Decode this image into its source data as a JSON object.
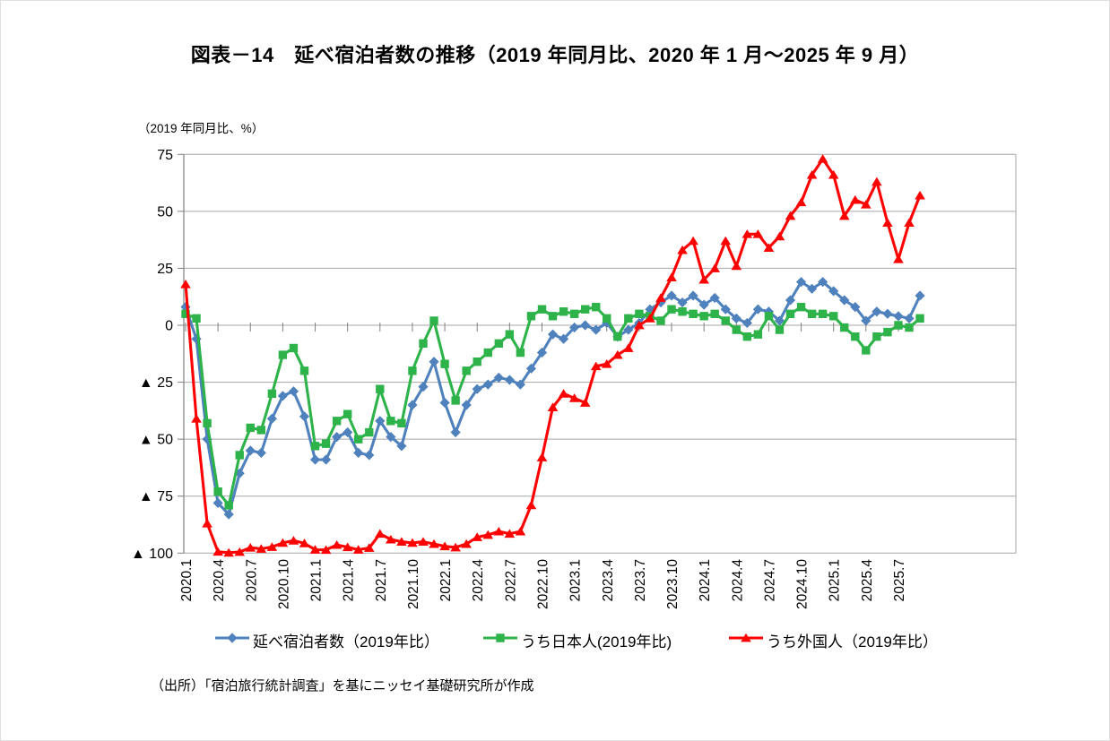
{
  "title": "図表－14　延べ宿泊者数の推移（2019 年同月比、2020 年 1 月～2025 年 9 月）",
  "y_axis_unit": "（2019 年同月比、%）",
  "source_note": "（出所）「宿泊旅行統計調査」を基にニッセイ基礎研究所が作成",
  "colors": {
    "grid": "#a6a6a6",
    "axis": "#808080",
    "series_total": "#4f81bd",
    "series_japanese": "#2db34a",
    "series_foreign": "#ff0000"
  },
  "chart_data": {
    "type": "line",
    "title": "延べ宿泊者数の推移（2019年同月比、2020年1月～2025年9月）",
    "ylabel": "（2019 年同月比、%）",
    "ylim": [
      -100,
      75
    ],
    "grid": true,
    "legend_position": "bottom",
    "y_ticks": [
      {
        "v": 75,
        "label": "75"
      },
      {
        "v": 50,
        "label": "50"
      },
      {
        "v": 25,
        "label": "25"
      },
      {
        "v": 0,
        "label": "0"
      },
      {
        "v": -25,
        "label": "▲ 25"
      },
      {
        "v": -50,
        "label": "▲ 50"
      },
      {
        "v": -75,
        "label": "▲ 75"
      },
      {
        "v": -100,
        "label": "▲ 100"
      }
    ],
    "x": [
      "2020.1",
      "2020.2",
      "2020.3",
      "2020.4",
      "2020.5",
      "2020.6",
      "2020.7",
      "2020.8",
      "2020.9",
      "2020.10",
      "2020.11",
      "2020.12",
      "2021.1",
      "2021.2",
      "2021.3",
      "2021.4",
      "2021.5",
      "2021.6",
      "2021.7",
      "2021.8",
      "2021.9",
      "2021.10",
      "2021.11",
      "2021.12",
      "2022.1",
      "2022.2",
      "2022.3",
      "2022.4",
      "2022.5",
      "2022.6",
      "2022.7",
      "2022.8",
      "2022.9",
      "2022.10",
      "2022.11",
      "2022.12",
      "2023.1",
      "2023.2",
      "2023.3",
      "2023.4",
      "2023.5",
      "2023.6",
      "2023.7",
      "2023.8",
      "2023.9",
      "2023.10",
      "2023.11",
      "2023.12",
      "2024.1",
      "2024.2",
      "2024.3",
      "2024.4",
      "2024.5",
      "2024.6",
      "2024.7",
      "2024.8",
      "2024.9",
      "2024.10",
      "2024.11",
      "2024.12",
      "2025.1",
      "2025.2",
      "2025.3",
      "2025.4",
      "2025.5",
      "2025.6",
      "2025.7",
      "2025.8",
      "2025.9"
    ],
    "x_tick_labels": [
      "2020.1",
      "2020.4",
      "2020.7",
      "2020.10",
      "2021.1",
      "2021.4",
      "2021.7",
      "2021.10",
      "2022.1",
      "2022.4",
      "2022.7",
      "2022.10",
      "2023.1",
      "2023.4",
      "2023.7",
      "2023.10",
      "2024.1",
      "2024.4",
      "2024.7",
      "2024.10",
      "2025.1",
      "2025.4",
      "2025.7"
    ],
    "series": [
      {
        "name": "延べ宿泊者数（2019年比）",
        "color": "#4f81bd",
        "marker": "diamond",
        "values": [
          8,
          -6,
          -50,
          -78,
          -83,
          -65,
          -55,
          -56,
          -41,
          -31,
          -29,
          -40,
          -59,
          -59,
          -49,
          -47,
          -56,
          -57,
          -42,
          -49,
          -53,
          -35,
          -27,
          -16,
          -34,
          -47,
          -35,
          -28,
          -26,
          -23,
          -24,
          -26,
          -19,
          -12,
          -4,
          -6,
          -1,
          0,
          -2,
          1,
          -5,
          -2,
          1,
          7,
          10,
          13,
          10,
          13,
          9,
          12,
          7,
          3,
          1,
          7,
          6,
          2,
          11,
          19,
          16,
          19,
          15,
          11,
          8,
          2,
          6,
          5,
          4,
          3,
          13
        ]
      },
      {
        "name": "うち日本人(2019年比)",
        "color": "#2db34a",
        "marker": "square",
        "values": [
          5,
          3,
          -43,
          -73,
          -79,
          -57,
          -45,
          -46,
          -30,
          -13,
          -10,
          -20,
          -53,
          -52,
          -42,
          -39,
          -50,
          -47,
          -28,
          -42,
          -43,
          -20,
          -8,
          2,
          -17,
          -33,
          -20,
          -16,
          -12,
          -8,
          -4,
          -12,
          4,
          7,
          4,
          6,
          5,
          7,
          8,
          3,
          -5,
          3,
          5,
          4,
          2,
          7,
          6,
          5,
          4,
          5,
          2,
          -2,
          -5,
          -4,
          4,
          -2,
          5,
          8,
          5,
          5,
          4,
          -1,
          -5,
          -11,
          -5,
          -3,
          0,
          -1,
          3
        ]
      },
      {
        "name": "うち外国人（2019年比）",
        "color": "#ff0000",
        "marker": "triangle",
        "values": [
          18,
          -41,
          -87,
          -99.4,
          -99.8,
          -99.5,
          -97.6,
          -98.1,
          -97.3,
          -95.5,
          -94.5,
          -95.7,
          -98.5,
          -98.6,
          -96.4,
          -97.4,
          -98.5,
          -97.7,
          -91.5,
          -94,
          -95,
          -95.5,
          -95,
          -96,
          -97,
          -97.5,
          -96,
          -93,
          -92,
          -90.5,
          -91.5,
          -90.5,
          -79,
          -58,
          -36,
          -30,
          -32,
          -34,
          -18,
          -17,
          -13,
          -10,
          0,
          3,
          12,
          21,
          33,
          37,
          20,
          25,
          37,
          26,
          40,
          40,
          34,
          39,
          48,
          54,
          66,
          73,
          66,
          48,
          55,
          53,
          63,
          45,
          29,
          45,
          57
        ]
      }
    ]
  }
}
